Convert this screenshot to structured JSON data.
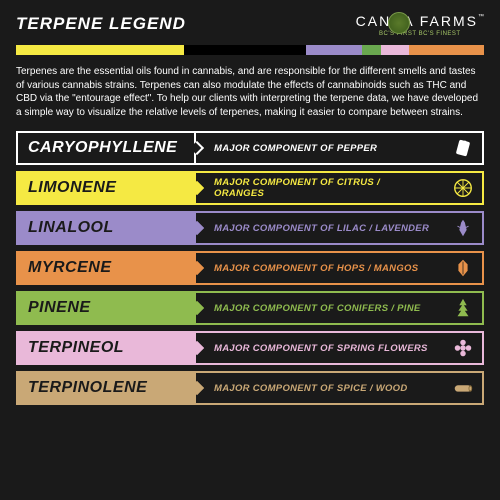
{
  "header": {
    "title": "TERPENE LEGEND"
  },
  "logo": {
    "main": "CANNA   FARMS",
    "sub": "BC'S FIRST     BC'S FINEST"
  },
  "colorbar": {
    "segments": [
      {
        "color": "#f5e943",
        "width": 36
      },
      {
        "color": "#000000",
        "width": 26
      },
      {
        "color": "#9b8bc9",
        "width": 12
      },
      {
        "color": "#6aa84f",
        "width": 4
      },
      {
        "color": "#e9b8d9",
        "width": 6
      },
      {
        "color": "#e8924a",
        "width": 16
      }
    ]
  },
  "intro": "Terpenes are the essential oils found in cannabis, and are responsible for the different smells and tastes of various cannabis strains. Terpenes can also modulate the effects of cannabinoids such as THC and CBD via the \"entourage effect\". To help our clients with interpreting the terpene data, we have developed a simple way to visualize the relative levels of terpenes, making it easier to compare between strains.",
  "terpenes": [
    {
      "name": "CARYOPHYLLENE",
      "desc": "MAJOR COMPONENT OF PEPPER",
      "nameColor": "#ffffff",
      "borderColor": "#ffffff",
      "bg": "#1a1a1a",
      "descColor": "#ffffff",
      "icon": "pepper"
    },
    {
      "name": "LIMONENE",
      "desc": "MAJOR COMPONENT OF CITRUS / ORANGES",
      "nameColor": "#1a1a1a",
      "borderColor": "#f5e943",
      "bg": "#f5e943",
      "descColor": "#f5e943",
      "icon": "citrus"
    },
    {
      "name": "LINALOOL",
      "desc": "MAJOR COMPONENT OF LILAC / LAVENDER",
      "nameColor": "#1a1a1a",
      "borderColor": "#9b8bc9",
      "bg": "#9b8bc9",
      "descColor": "#9b8bc9",
      "icon": "lavender"
    },
    {
      "name": "MYRCENE",
      "desc": "MAJOR COMPONENT OF HOPS / MANGOS",
      "nameColor": "#1a1a1a",
      "borderColor": "#e8924a",
      "bg": "#e8924a",
      "descColor": "#e8924a",
      "icon": "hops"
    },
    {
      "name": "PINENE",
      "desc": "MAJOR COMPONENT OF CONIFERS / PINE",
      "nameColor": "#1a1a1a",
      "borderColor": "#8fbb4f",
      "bg": "#8fbb4f",
      "descColor": "#8fbb4f",
      "icon": "pine"
    },
    {
      "name": "TERPINEOL",
      "desc": "MAJOR COMPONENT OF SPRING FLOWERS",
      "nameColor": "#1a1a1a",
      "borderColor": "#e9b8d9",
      "bg": "#e9b8d9",
      "descColor": "#e9b8d9",
      "icon": "flower"
    },
    {
      "name": "TERPINOLENE",
      "desc": "MAJOR COMPONENT OF SPICE / WOOD",
      "nameColor": "#1a1a1a",
      "borderColor": "#c9a876",
      "bg": "#c9a876",
      "descColor": "#c9a876",
      "icon": "wood"
    }
  ]
}
